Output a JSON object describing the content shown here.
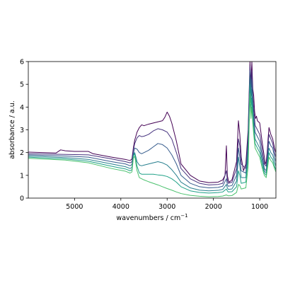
{
  "chart_data": {
    "type": "line",
    "title": "",
    "xlabel": "wavenumbers / cm",
    "xlabel_superscript": "−1",
    "ylabel": "absorbance / a.u.",
    "xlim": [
      5999,
      650
    ],
    "ylim": [
      0,
      6
    ],
    "x_reversed": true,
    "x_ticks": [
      5000,
      4000,
      3000,
      2000,
      1000
    ],
    "x_tick_labels": [
      "5000",
      "4000",
      "3000",
      "2000",
      "1000"
    ],
    "y_ticks": [
      0,
      1,
      2,
      3,
      4,
      5,
      6
    ],
    "y_tick_labels": [
      "0",
      "1",
      "2",
      "3",
      "4",
      "5",
      "6"
    ],
    "grid": false,
    "legend": "none",
    "series": [
      {
        "color": "#440154",
        "x": [
          5999,
          5400,
          5300,
          5200,
          5000,
          4700,
          4600,
          4200,
          3900,
          3800,
          3760,
          3730,
          3700,
          3650,
          3600,
          3550,
          3500,
          3400,
          3300,
          3200,
          3100,
          3050,
          3000,
          2950,
          2900,
          2800,
          2700,
          2500,
          2300,
          2100,
          1900,
          1800,
          1750,
          1720,
          1700,
          1680,
          1660,
          1600,
          1500,
          1460,
          1430,
          1400,
          1350,
          1300,
          1250,
          1210,
          1190,
          1170,
          1150,
          1130,
          1110,
          1090,
          1070,
          1050,
          1000,
          950,
          900,
          880,
          860,
          840,
          820,
          800,
          760,
          720,
          680,
          650
        ],
        "y": [
          2.02,
          1.98,
          2.12,
          2.08,
          2.05,
          2.05,
          1.95,
          1.8,
          1.7,
          1.65,
          1.72,
          2.2,
          2.55,
          2.9,
          3.1,
          3.22,
          3.18,
          3.25,
          3.3,
          3.35,
          3.4,
          3.55,
          3.78,
          3.6,
          3.3,
          2.5,
          1.5,
          1.0,
          0.75,
          0.68,
          0.7,
          0.8,
          1.0,
          2.3,
          1.0,
          0.8,
          0.7,
          0.8,
          1.6,
          3.4,
          2.8,
          1.8,
          1.2,
          1.5,
          3.0,
          6.0,
          5.0,
          6.0,
          4.8,
          4.5,
          3.8,
          3.5,
          3.6,
          3.4,
          3.3,
          2.5,
          1.8,
          1.5,
          1.6,
          2.0,
          2.6,
          3.1,
          2.8,
          2.6,
          2.2,
          2.0
        ]
      },
      {
        "color": "#46327e",
        "x": [
          5999,
          5200,
          4700,
          4200,
          3900,
          3800,
          3760,
          3730,
          3700,
          3650,
          3600,
          3550,
          3500,
          3400,
          3300,
          3200,
          3100,
          3000,
          2900,
          2800,
          2700,
          2500,
          2300,
          2100,
          1900,
          1800,
          1720,
          1700,
          1680,
          1600,
          1500,
          1460,
          1430,
          1400,
          1300,
          1250,
          1210,
          1190,
          1170,
          1150,
          1130,
          1100,
          1050,
          1000,
          950,
          900,
          860,
          820,
          800,
          760,
          720,
          680,
          650
        ],
        "y": [
          1.95,
          1.92,
          1.9,
          1.72,
          1.6,
          1.55,
          1.6,
          2.1,
          2.4,
          2.65,
          2.75,
          2.7,
          2.72,
          2.8,
          2.95,
          3.05,
          3.0,
          2.9,
          2.6,
          2.0,
          1.3,
          0.85,
          0.65,
          0.58,
          0.6,
          0.65,
          1.2,
          0.8,
          0.65,
          0.7,
          1.3,
          2.6,
          2.3,
          1.5,
          1.3,
          2.7,
          5.8,
          4.8,
          5.6,
          4.5,
          4.0,
          3.2,
          3.0,
          2.8,
          2.2,
          1.5,
          1.4,
          2.4,
          2.8,
          2.6,
          2.4,
          2.0,
          1.8
        ]
      },
      {
        "color": "#365c8d",
        "x": [
          5999,
          5200,
          4700,
          4200,
          3900,
          3800,
          3760,
          3730,
          3700,
          3650,
          3600,
          3550,
          3500,
          3400,
          3300,
          3200,
          3100,
          3000,
          2900,
          2800,
          2700,
          2500,
          2300,
          2100,
          1900,
          1800,
          1720,
          1700,
          1680,
          1600,
          1500,
          1460,
          1430,
          1400,
          1300,
          1250,
          1210,
          1190,
          1170,
          1150,
          1130,
          1100,
          1050,
          1000,
          950,
          900,
          860,
          820,
          800,
          760,
          720,
          680,
          650
        ],
        "y": [
          1.9,
          1.85,
          1.8,
          1.6,
          1.5,
          1.42,
          1.48,
          1.95,
          2.2,
          2.15,
          2.0,
          1.95,
          2.0,
          2.1,
          2.25,
          2.4,
          2.35,
          2.2,
          1.9,
          1.5,
          1.0,
          0.65,
          0.5,
          0.45,
          0.47,
          0.52,
          0.85,
          0.6,
          0.52,
          0.55,
          1.0,
          2.2,
          1.8,
          1.2,
          1.1,
          2.4,
          5.6,
          4.5,
          5.2,
          4.2,
          3.6,
          2.9,
          2.7,
          2.5,
          1.9,
          1.3,
          1.2,
          2.1,
          2.5,
          2.3,
          2.2,
          1.8,
          1.6
        ]
      },
      {
        "color": "#277f8e",
        "x": [
          5999,
          5200,
          4700,
          4200,
          3900,
          3800,
          3760,
          3730,
          3700,
          3650,
          3600,
          3550,
          3500,
          3400,
          3300,
          3200,
          3100,
          3000,
          2900,
          2800,
          2700,
          2500,
          2300,
          2100,
          1900,
          1800,
          1720,
          1700,
          1680,
          1600,
          1500,
          1460,
          1430,
          1400,
          1300,
          1250,
          1210,
          1190,
          1170,
          1150,
          1130,
          1100,
          1050,
          1000,
          950,
          900,
          860,
          820,
          800,
          760,
          720,
          680,
          650
        ],
        "y": [
          1.85,
          1.78,
          1.7,
          1.5,
          1.38,
          1.3,
          1.35,
          1.9,
          2.0,
          1.6,
          1.45,
          1.42,
          1.45,
          1.5,
          1.55,
          1.6,
          1.55,
          1.45,
          1.25,
          1.0,
          0.7,
          0.45,
          0.35,
          0.32,
          0.34,
          0.38,
          0.6,
          0.45,
          0.38,
          0.4,
          0.75,
          1.8,
          1.4,
          0.9,
          0.9,
          2.1,
          5.3,
          4.2,
          4.8,
          3.9,
          3.3,
          2.6,
          2.4,
          2.2,
          1.7,
          1.2,
          1.1,
          1.9,
          2.2,
          2.0,
          1.9,
          1.6,
          1.4
        ]
      },
      {
        "color": "#1fa187",
        "x": [
          5999,
          5200,
          4700,
          4200,
          3900,
          3800,
          3760,
          3730,
          3700,
          3650,
          3600,
          3550,
          3500,
          3400,
          3300,
          3200,
          3100,
          3000,
          2900,
          2800,
          2700,
          2500,
          2300,
          2100,
          1900,
          1800,
          1720,
          1700,
          1680,
          1600,
          1500,
          1460,
          1430,
          1400,
          1300,
          1250,
          1210,
          1190,
          1170,
          1150,
          1130,
          1100,
          1050,
          1000,
          950,
          900,
          860,
          820,
          800,
          760,
          720,
          680,
          650
        ],
        "y": [
          1.8,
          1.72,
          1.62,
          1.4,
          1.28,
          1.2,
          1.25,
          1.85,
          1.95,
          1.4,
          1.1,
          1.05,
          1.05,
          1.05,
          1.05,
          1.02,
          1.0,
          0.95,
          0.85,
          0.7,
          0.5,
          0.32,
          0.25,
          0.22,
          0.24,
          0.27,
          0.4,
          0.32,
          0.27,
          0.28,
          0.5,
          1.2,
          1.0,
          0.65,
          0.7,
          1.8,
          5.0,
          3.8,
          4.4,
          3.6,
          3.0,
          2.4,
          2.2,
          2.0,
          1.5,
          1.1,
          1.0,
          1.7,
          2.0,
          1.8,
          1.7,
          1.4,
          1.25
        ]
      },
      {
        "color": "#4ac16d",
        "x": [
          5999,
          5200,
          4700,
          4200,
          3900,
          3800,
          3760,
          3730,
          3700,
          3650,
          3600,
          3550,
          3500,
          3400,
          3300,
          3200,
          3100,
          3000,
          2900,
          2800,
          2700,
          2500,
          2300,
          2100,
          1900,
          1800,
          1720,
          1700,
          1680,
          1600,
          1500,
          1460,
          1430,
          1400,
          1300,
          1250,
          1210,
          1190,
          1170,
          1150,
          1130,
          1100,
          1050,
          1000,
          950,
          900,
          860,
          820,
          800,
          760,
          720,
          680,
          650
        ],
        "y": [
          1.75,
          1.67,
          1.55,
          1.3,
          1.18,
          1.1,
          1.15,
          1.75,
          1.85,
          1.2,
          0.9,
          0.85,
          0.8,
          0.72,
          0.65,
          0.58,
          0.5,
          0.42,
          0.35,
          0.27,
          0.2,
          0.12,
          0.08,
          0.06,
          0.07,
          0.09,
          0.14,
          0.12,
          0.1,
          0.11,
          0.25,
          0.6,
          0.55,
          0.4,
          0.45,
          1.4,
          4.6,
          3.5,
          4.0,
          3.3,
          2.8,
          2.2,
          2.0,
          1.8,
          1.35,
          1.0,
          0.9,
          1.5,
          1.8,
          1.65,
          1.55,
          1.3,
          1.15
        ]
      }
    ]
  }
}
